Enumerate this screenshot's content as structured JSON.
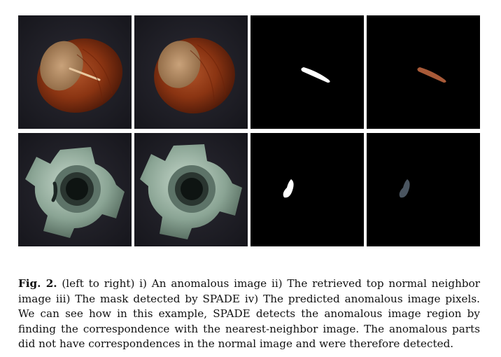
{
  "figure": {
    "rows": [
      {
        "object": "hazelnut",
        "panels": [
          "anomalous-image",
          "nearest-neighbor-image",
          "detected-mask",
          "anomalous-pixels"
        ]
      },
      {
        "object": "metal-nut",
        "panels": [
          "anomalous-image",
          "nearest-neighbor-image",
          "detected-mask",
          "anomalous-pixels"
        ]
      }
    ],
    "colors": {
      "hazelnut": "#8a3412",
      "metal_nut": "#9fb7a8",
      "mask": "#ffffff",
      "background": "#000000"
    }
  },
  "caption": {
    "label": "Fig. 2.",
    "text": " (left to right) i) An anomalous image ii) The retrieved top normal neighbor image iii) The mask detected by SPADE iv) The predicted anomalous image pixels. We can see how in this example, SPADE detects the anomalous image region by finding the correspondence with the nearest-neighbor image. The anomalous parts did not have correspondences in the normal image and were therefore detected."
  }
}
